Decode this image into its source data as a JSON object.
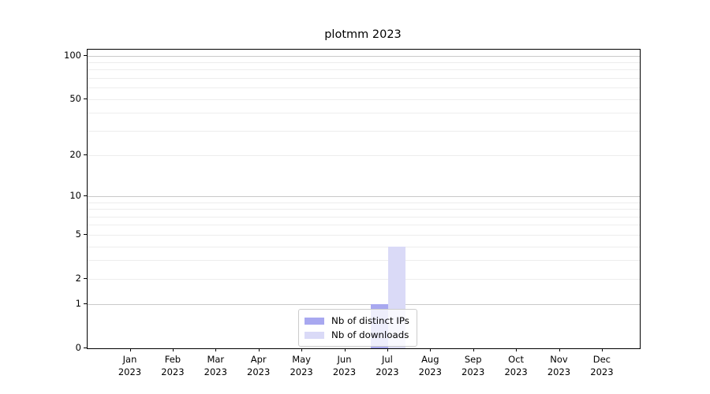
{
  "title": "plotmm 2023",
  "chart_data": {
    "type": "bar",
    "title": "plotmm 2023",
    "categories": [
      "Jan",
      "Feb",
      "Mar",
      "Apr",
      "May",
      "Jun",
      "Jul",
      "Aug",
      "Sep",
      "Oct",
      "Nov",
      "Dec"
    ],
    "year_label": "2023",
    "series": [
      {
        "name": "Nb of distinct IPs",
        "color": "#a8a8f0",
        "values": [
          0,
          0,
          0,
          0,
          0,
          0,
          1,
          0,
          0,
          0,
          0,
          0
        ]
      },
      {
        "name": "Nb of downloads",
        "color": "#dadaf7",
        "values": [
          0,
          0,
          0,
          0,
          0,
          0,
          4,
          0,
          0,
          0,
          0,
          0
        ]
      }
    ],
    "xlabel": "",
    "ylabel": "",
    "yscale": "log1p",
    "ylim": [
      0,
      110
    ],
    "yticks": [
      0,
      1,
      2,
      5,
      10,
      20,
      50,
      100
    ],
    "grid": {
      "on": true,
      "major_lines": [
        1,
        10,
        100
      ],
      "minor_lines": [
        2,
        3,
        4,
        5,
        6,
        7,
        8,
        9,
        20,
        30,
        40,
        50,
        60,
        70,
        80,
        90
      ]
    },
    "legend_position": "lower center"
  },
  "style": {
    "major_grid_color": "#c9c9c9",
    "minor_grid_color": "#ededed",
    "axis_color": "#000000",
    "legend_border_color": "#cccccc"
  }
}
